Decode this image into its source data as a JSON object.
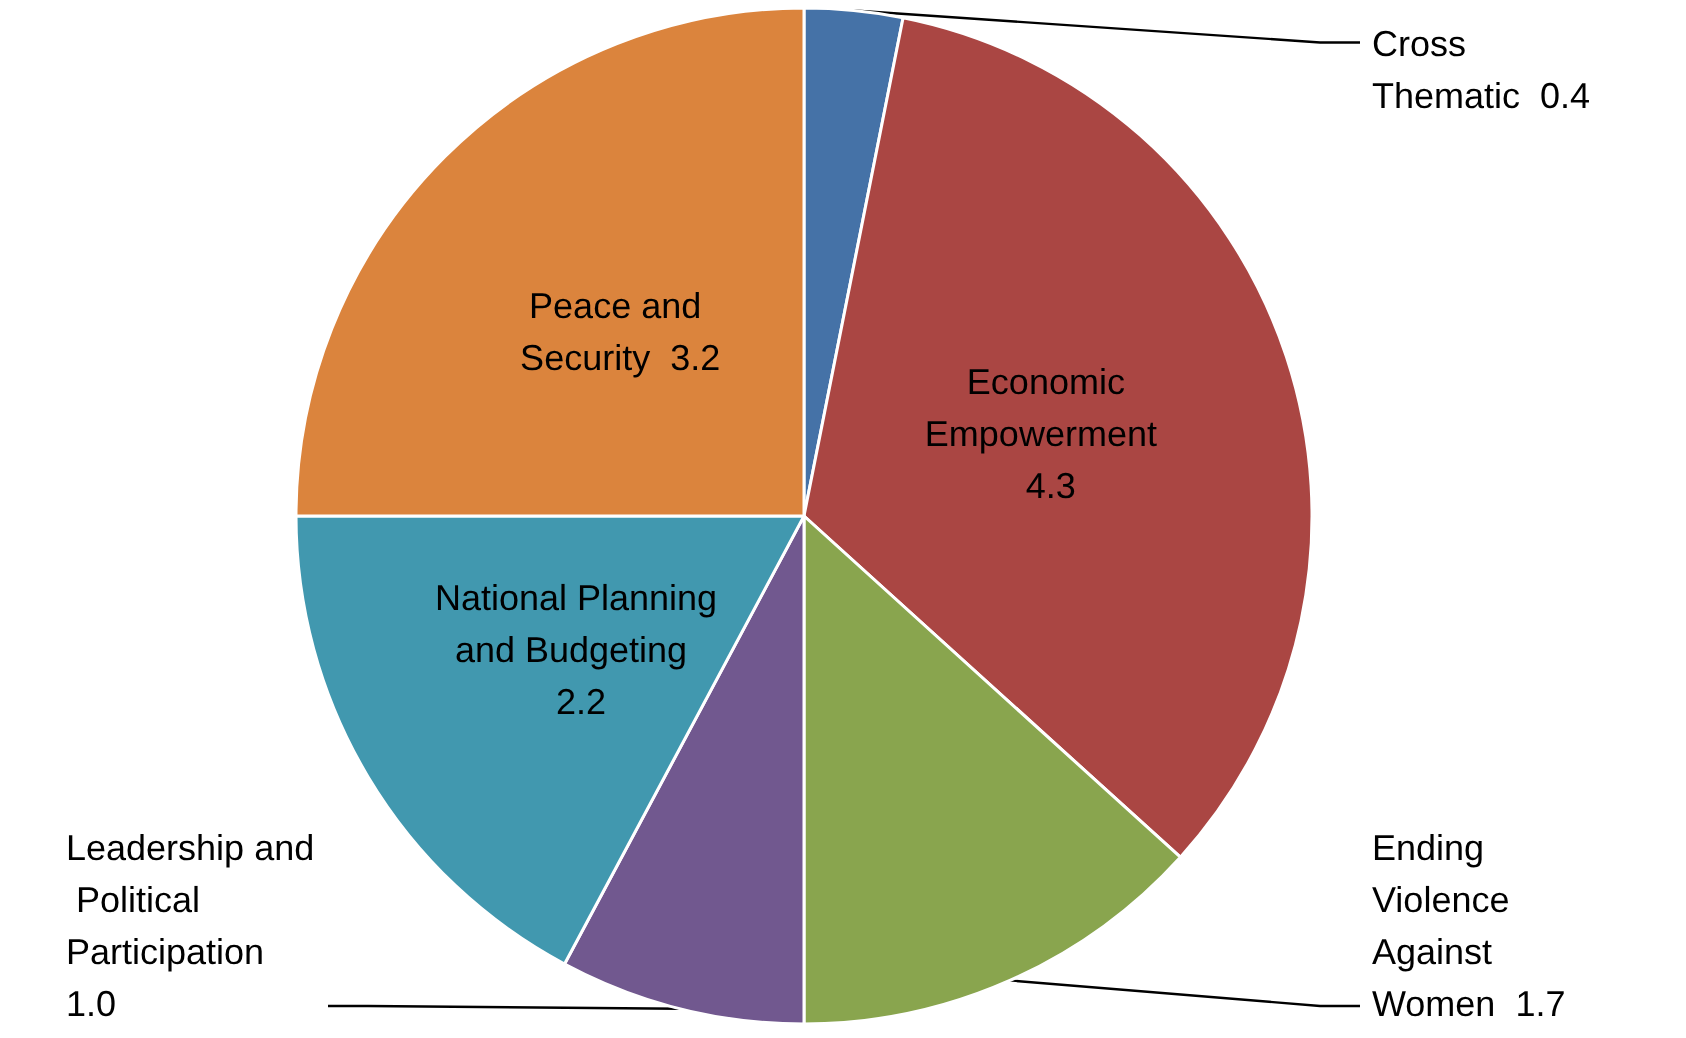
{
  "chart_data": {
    "type": "pie",
    "categories": [
      "Cross Thematic",
      "Economic Empowerment",
      "Ending Violence Against Women",
      "Leadership and Political Participation",
      "National Planning and Budgeting",
      "Peace and Security"
    ],
    "values": [
      0.4,
      4.3,
      1.7,
      1.0,
      2.2,
      3.2
    ],
    "colors": [
      "#4572a7",
      "#aa4643",
      "#89a54e",
      "#71588f",
      "#4198af",
      "#db843d"
    ],
    "value_labels": [
      "0.4",
      "4.3",
      "1.7",
      "1.0",
      "2.2",
      "3.2"
    ],
    "legend": false
  }
}
